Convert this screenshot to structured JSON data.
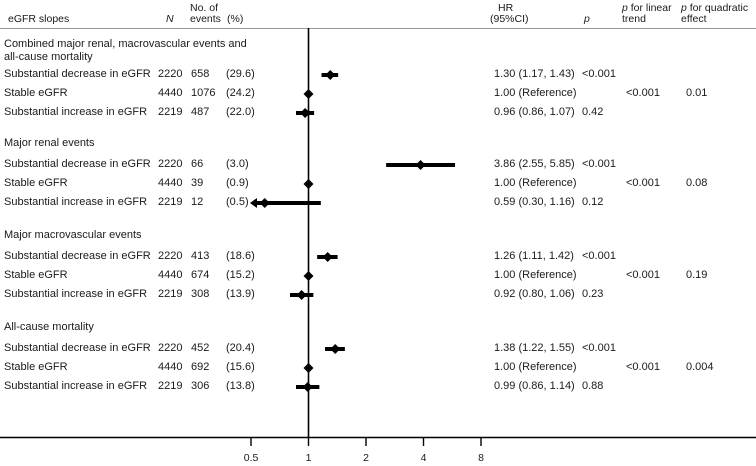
{
  "header": {
    "slopes": "eGFR slopes",
    "n": "N",
    "events_line1": "No. of",
    "events_line2": "events",
    "pct": "(%)",
    "hr_line1": "HR",
    "hr_line2": "(95%CI)",
    "p": "p",
    "plin_italic": "p",
    "plin_line1": " for linear",
    "plin_line2": "trend",
    "pquad_italic": "p",
    "pquad_line1": " for quadratic",
    "pquad_line2": "effect"
  },
  "groups": [
    {
      "title_line1": "Combined major renal, macrovascular events and",
      "title_line2": "all-cause mortality",
      "p_linear": "<0.001",
      "p_quadratic": "0.01",
      "rows": [
        {
          "label": "Substantial decrease in eGFR",
          "n": "2220",
          "events": "658",
          "pct": "(29.6)",
          "hr_text": "1.30 (1.17, 1.43)",
          "p": "<0.001"
        },
        {
          "label": "Stable eGFR",
          "n": "4440",
          "events": "1076",
          "pct": "(24.2)",
          "hr_text": "1.00 (Reference)",
          "p": ""
        },
        {
          "label": "Substantial increase in eGFR",
          "n": "2219",
          "events": "487",
          "pct": "(22.0)",
          "hr_text": "0.96 (0.86, 1.07)",
          "p": "0.42"
        }
      ]
    },
    {
      "title_line1": "Major renal events",
      "title_line2": "",
      "p_linear": "<0.001",
      "p_quadratic": "0.08",
      "rows": [
        {
          "label": "Substantial decrease in eGFR",
          "n": "2220",
          "events": "66",
          "pct": "(3.0)",
          "hr_text": "3.86 (2.55, 5.85)",
          "p": "<0.001"
        },
        {
          "label": "Stable eGFR",
          "n": "4440",
          "events": "39",
          "pct": "(0.9)",
          "hr_text": "1.00 (Reference)",
          "p": ""
        },
        {
          "label": "Substantial increase in eGFR",
          "n": "2219",
          "events": "12",
          "pct": "(0.5)",
          "hr_text": "0.59 (0.30, 1.16)",
          "p": "0.12"
        }
      ]
    },
    {
      "title_line1": "Major macrovascular events",
      "title_line2": "",
      "p_linear": "<0.001",
      "p_quadratic": "0.19",
      "rows": [
        {
          "label": "Substantial decrease in eGFR",
          "n": "2220",
          "events": "413",
          "pct": "(18.6)",
          "hr_text": "1.26 (1.11, 1.42)",
          "p": "<0.001"
        },
        {
          "label": "Stable eGFR",
          "n": "4440",
          "events": "674",
          "pct": "(15.2)",
          "hr_text": "1.00 (Reference)",
          "p": ""
        },
        {
          "label": "Substantial increase in eGFR",
          "n": "2219",
          "events": "308",
          "pct": "(13.9)",
          "hr_text": "0.92 (0.80, 1.06)",
          "p": "0.23"
        }
      ]
    },
    {
      "title_line1": "All-cause mortality",
      "title_line2": "",
      "p_linear": "<0.001",
      "p_quadratic": "0.004",
      "rows": [
        {
          "label": "Substantial decrease in eGFR",
          "n": "2220",
          "events": "452",
          "pct": "(20.4)",
          "hr_text": "1.38 (1.22, 1.55)",
          "p": "<0.001"
        },
        {
          "label": "Stable eGFR",
          "n": "4440",
          "events": "692",
          "pct": "(15.6)",
          "hr_text": "1.00 (Reference)",
          "p": ""
        },
        {
          "label": "Substantial increase in eGFR",
          "n": "2219",
          "events": "306",
          "pct": "(13.8)",
          "hr_text": "0.99 (0.86, 1.14)",
          "p": "0.88"
        }
      ]
    }
  ],
  "axis": {
    "ticks": [
      "0.5",
      "1",
      "2",
      "4",
      "8"
    ]
  },
  "chart_data": {
    "type": "forest",
    "title": "",
    "xlabel": "HR (95%CI)",
    "x_scale": "log2",
    "xlim": [
      0.5,
      8
    ],
    "x_ticks": [
      0.5,
      1,
      2,
      4,
      8
    ],
    "reference_line": 1,
    "columns": [
      "eGFR slopes",
      "N",
      "No. of events",
      "(%)",
      "HR (95%CI)",
      "p",
      "p for linear trend",
      "p for quadratic effect"
    ],
    "series": [
      {
        "name": "Combined major renal, macrovascular events and all-cause mortality",
        "categories": [
          "Substantial decrease in eGFR",
          "Stable eGFR",
          "Substantial increase in eGFR"
        ],
        "hr": [
          1.3,
          1.0,
          0.96
        ],
        "ci_low": [
          1.17,
          null,
          0.86
        ],
        "ci_high": [
          1.43,
          null,
          1.07
        ],
        "n": [
          2220,
          4440,
          2219
        ],
        "events": [
          658,
          1076,
          487
        ],
        "pct": [
          29.6,
          24.2,
          22.0
        ],
        "p": [
          "<0.001",
          "",
          "0.42"
        ],
        "p_linear_trend": "<0.001",
        "p_quadratic": "0.01"
      },
      {
        "name": "Major renal events",
        "categories": [
          "Substantial decrease in eGFR",
          "Stable eGFR",
          "Substantial increase in eGFR"
        ],
        "hr": [
          3.86,
          1.0,
          0.59
        ],
        "ci_low": [
          2.55,
          null,
          0.3
        ],
        "ci_high": [
          5.85,
          null,
          1.16
        ],
        "n": [
          2220,
          4440,
          2219
        ],
        "events": [
          66,
          39,
          12
        ],
        "pct": [
          3.0,
          0.9,
          0.5
        ],
        "p": [
          "<0.001",
          "",
          "0.12"
        ],
        "p_linear_trend": "<0.001",
        "p_quadratic": "0.08"
      },
      {
        "name": "Major macrovascular events",
        "categories": [
          "Substantial decrease in eGFR",
          "Stable eGFR",
          "Substantial increase in eGFR"
        ],
        "hr": [
          1.26,
          1.0,
          0.92
        ],
        "ci_low": [
          1.11,
          null,
          0.8
        ],
        "ci_high": [
          1.42,
          null,
          1.06
        ],
        "n": [
          2220,
          4440,
          2219
        ],
        "events": [
          413,
          674,
          308
        ],
        "pct": [
          18.6,
          15.2,
          13.9
        ],
        "p": [
          "<0.001",
          "",
          "0.23"
        ],
        "p_linear_trend": "<0.001",
        "p_quadratic": "0.19"
      },
      {
        "name": "All-cause mortality",
        "categories": [
          "Substantial decrease in eGFR",
          "Stable eGFR",
          "Substantial increase in eGFR"
        ],
        "hr": [
          1.38,
          1.0,
          0.99
        ],
        "ci_low": [
          1.22,
          null,
          0.86
        ],
        "ci_high": [
          1.55,
          null,
          1.14
        ],
        "n": [
          2220,
          4440,
          2219
        ],
        "events": [
          452,
          692,
          306
        ],
        "pct": [
          20.4,
          15.6,
          13.8
        ],
        "p": [
          "<0.001",
          "",
          "0.88"
        ],
        "p_linear_trend": "<0.001",
        "p_quadratic": "0.004"
      }
    ]
  }
}
